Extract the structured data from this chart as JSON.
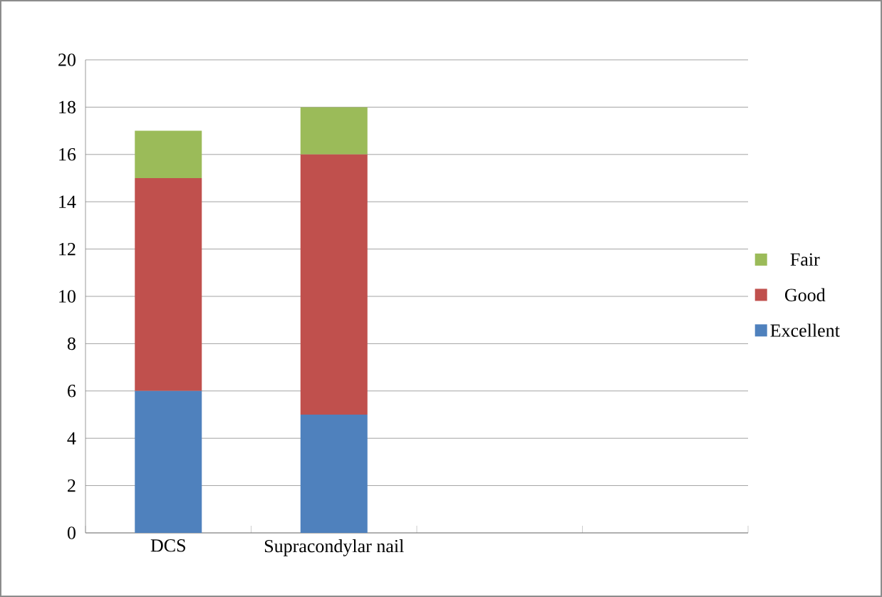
{
  "chart_data": {
    "type": "bar",
    "stacked": true,
    "categories": [
      "DCS",
      "Supracondylar nail",
      null,
      null
    ],
    "series": [
      {
        "name": "Excellent",
        "color": "#4f81bd",
        "values": [
          6,
          5,
          null,
          null
        ]
      },
      {
        "name": "Good",
        "color": "#c0504d",
        "values": [
          9,
          11,
          null,
          null
        ]
      },
      {
        "name": "Fair",
        "color": "#9bbb59",
        "values": [
          2,
          2,
          null,
          null
        ]
      }
    ],
    "ylim": [
      0,
      20
    ],
    "yticks": [
      0,
      2,
      4,
      6,
      8,
      10,
      12,
      14,
      16,
      18,
      20
    ],
    "grid": "y",
    "legend": "right"
  }
}
